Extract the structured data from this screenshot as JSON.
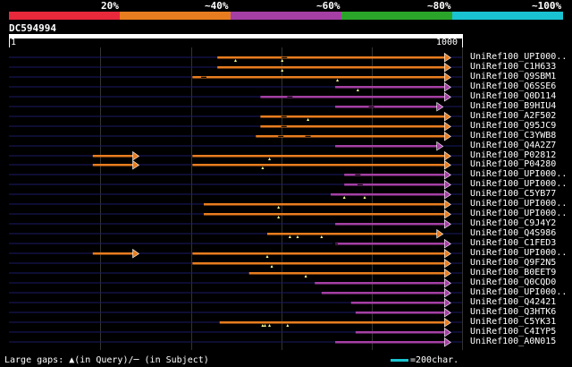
{
  "legend": {
    "labels": [
      "20%",
      "~40%",
      "~60%",
      "~80%",
      "~100%"
    ],
    "colors": [
      "#e8283b",
      "#e87d1f",
      "#a53fa5",
      "#2aa52a",
      "#19c3d1"
    ]
  },
  "query": {
    "title": "DC594994",
    "start_label": "1",
    "end_label": "1000",
    "length": 1000
  },
  "hits": [
    {
      "name": "UniRef100_UPI000..",
      "color": "#e87d1f",
      "segments": [
        [
          460,
          975
        ]
      ],
      "gaps": [
        [
          500,
          "q"
        ],
        [
          603,
          "q"
        ],
        [
          608,
          "s"
        ]
      ]
    },
    {
      "name": "UniRef100_C1H633",
      "color": "#e87d1f",
      "segments": [
        [
          460,
          975
        ]
      ],
      "gaps": [
        [
          603,
          "q"
        ]
      ]
    },
    {
      "name": "UniRef100_Q9SBM1",
      "color": "#e87d1f",
      "segments": [
        [
          405,
          975
        ]
      ],
      "gaps": [
        [
          430,
          "s"
        ],
        [
          725,
          "q"
        ]
      ]
    },
    {
      "name": "UniRef100_Q6SSE6",
      "color": "#a53fa5",
      "segments": [
        [
          720,
          975
        ]
      ],
      "gaps": [
        [
          770,
          "q"
        ]
      ]
    },
    {
      "name": "UniRef100_Q0D114",
      "color": "#a53fa5",
      "segments": [
        [
          555,
          975
        ]
      ],
      "gaps": [
        [
          620,
          "s"
        ]
      ]
    },
    {
      "name": "UniRef100_B9HIU4",
      "color": "#a53fa5",
      "segments": [
        [
          720,
          958
        ]
      ],
      "gaps": [
        [
          800,
          "s"
        ]
      ]
    },
    {
      "name": "UniRef100_A2F502",
      "color": "#e87d1f",
      "segments": [
        [
          555,
          975
        ]
      ],
      "gaps": [
        [
          607,
          "s"
        ],
        [
          660,
          "q"
        ]
      ]
    },
    {
      "name": "UniRef100_Q95JC9",
      "color": "#e87d1f",
      "segments": [
        [
          555,
          975
        ]
      ],
      "gaps": [
        [
          607,
          "s"
        ]
      ]
    },
    {
      "name": "UniRef100_C3YWB8",
      "color": "#e87d1f",
      "segments": [
        [
          545,
          975
        ]
      ],
      "gaps": [
        [
          600,
          "s"
        ],
        [
          660,
          "s"
        ]
      ]
    },
    {
      "name": "UniRef100_Q4A2Z7",
      "color": "#a53fa5",
      "segments": [
        [
          720,
          958
        ]
      ],
      "gaps": []
    },
    {
      "name": "UniRef100_P02812",
      "color": "#e87d1f",
      "segments": [
        [
          185,
          287
        ],
        [
          405,
          975
        ]
      ],
      "gaps": [
        [
          575,
          "q"
        ]
      ]
    },
    {
      "name": "UniRef100_P04280",
      "color": "#e87d1f",
      "segments": [
        [
          185,
          287
        ],
        [
          405,
          975
        ]
      ],
      "gaps": [
        [
          560,
          "q"
        ]
      ]
    },
    {
      "name": "UniRef100_UPI000..",
      "color": "#a53fa5",
      "segments": [
        [
          740,
          975
        ]
      ],
      "gaps": [
        [
          770,
          "s"
        ]
      ]
    },
    {
      "name": "UniRef100_UPI000..",
      "color": "#a53fa5",
      "segments": [
        [
          740,
          975
        ]
      ],
      "gaps": [
        [
          775,
          "s"
        ]
      ]
    },
    {
      "name": "UniRef100_C5YB77",
      "color": "#a53fa5",
      "segments": [
        [
          710,
          975
        ]
      ],
      "gaps": [
        [
          740,
          "q"
        ],
        [
          785,
          "q"
        ]
      ]
    },
    {
      "name": "UniRef100_UPI000..",
      "color": "#e87d1f",
      "segments": [
        [
          430,
          975
        ]
      ],
      "gaps": [
        [
          595,
          "q"
        ]
      ]
    },
    {
      "name": "UniRef100_UPI000..",
      "color": "#e87d1f",
      "segments": [
        [
          430,
          975
        ]
      ],
      "gaps": [
        [
          595,
          "q"
        ]
      ]
    },
    {
      "name": "UniRef100_C9J4Y2",
      "color": "#a53fa5",
      "segments": [
        [
          720,
          975
        ]
      ],
      "gaps": []
    },
    {
      "name": "UniRef100_Q4S986",
      "color": "#e87d1f",
      "segments": [
        [
          570,
          958
        ]
      ],
      "gaps": [
        [
          620,
          "q"
        ],
        [
          637,
          "q"
        ],
        [
          690,
          "q"
        ]
      ]
    },
    {
      "name": "UniRef100_C1FED3",
      "color": "#a53fa5",
      "segments": [
        [
          720,
          975
        ]
      ],
      "gaps": [
        [
          720,
          "s"
        ]
      ]
    },
    {
      "name": "UniRef100_UPI000..",
      "color": "#e87d1f",
      "segments": [
        [
          185,
          287
        ],
        [
          405,
          975
        ]
      ],
      "gaps": [
        [
          570,
          "q"
        ]
      ]
    },
    {
      "name": "UniRef100_Q9F2N5",
      "color": "#e87d1f",
      "segments": [
        [
          405,
          975
        ]
      ],
      "gaps": [
        [
          580,
          "q"
        ]
      ]
    },
    {
      "name": "UniRef100_B0EET9",
      "color": "#e87d1f",
      "segments": [
        [
          530,
          975
        ]
      ],
      "gaps": [
        [
          655,
          "q"
        ]
      ]
    },
    {
      "name": "UniRef100_Q0CQD0",
      "color": "#a53fa5",
      "segments": [
        [
          675,
          975
        ]
      ],
      "gaps": []
    },
    {
      "name": "UniRef100_UPI000..",
      "color": "#a53fa5",
      "segments": [
        [
          690,
          975
        ]
      ],
      "gaps": []
    },
    {
      "name": "UniRef100_Q42421",
      "color": "#a53fa5",
      "segments": [
        [
          755,
          975
        ]
      ],
      "gaps": []
    },
    {
      "name": "UniRef100_Q3HTK6",
      "color": "#a53fa5",
      "segments": [
        [
          765,
          975
        ]
      ],
      "gaps": []
    },
    {
      "name": "UniRef100_C5YK31",
      "color": "#e87d1f",
      "segments": [
        [
          465,
          975
        ]
      ],
      "gaps": [
        [
          560,
          "q"
        ],
        [
          565,
          "q"
        ],
        [
          575,
          "q"
        ],
        [
          615,
          "q"
        ]
      ]
    },
    {
      "name": "UniRef100_C4IYP5",
      "color": "#a53fa5",
      "segments": [
        [
          765,
          975
        ]
      ],
      "gaps": []
    },
    {
      "name": "UniRef100_A0N015",
      "color": "#a53fa5",
      "segments": [
        [
          720,
          975
        ]
      ],
      "gaps": []
    }
  ],
  "footer": {
    "gaps_text": "Large gaps: ▲(in Query)/─ (in Subject)",
    "scale_text": "=200char."
  }
}
